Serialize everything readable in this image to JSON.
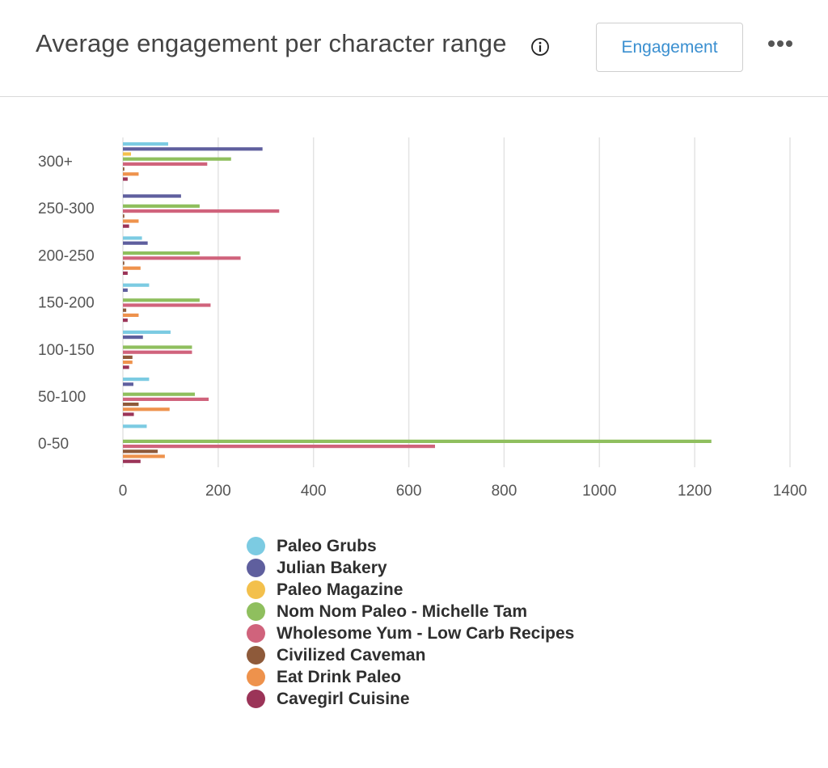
{
  "header": {
    "title": "Average engagement per character range",
    "info_icon": "info-circle-icon",
    "mode_button_label": "Engagement",
    "more_icon": "more-horizontal-icon"
  },
  "chart_data": {
    "type": "bar",
    "orientation": "horizontal",
    "title": "",
    "xlabel": "",
    "ylabel": "",
    "xlim": [
      0,
      1400
    ],
    "x_ticks": [
      0,
      200,
      400,
      600,
      800,
      1000,
      1200,
      1400
    ],
    "grid": "vertical",
    "legend_position": "bottom",
    "categories": [
      "300+",
      "250-300",
      "200-250",
      "150-200",
      "100-150",
      "50-100",
      "0-50"
    ],
    "series": [
      {
        "name": "Paleo Grubs",
        "color": "#7ccbe2",
        "values": [
          95,
          0,
          40,
          55,
          100,
          55,
          50
        ]
      },
      {
        "name": "Julian Bakery",
        "color": "#5f5f9e",
        "values": [
          293,
          122,
          52,
          10,
          42,
          22,
          0
        ]
      },
      {
        "name": "Paleo Magazine",
        "color": "#f3c04c",
        "values": [
          17,
          0,
          0,
          0,
          0,
          0,
          0
        ]
      },
      {
        "name": "Nom Nom Paleo - Michelle Tam",
        "color": "#8fbf5e",
        "values": [
          227,
          161,
          161,
          161,
          145,
          151,
          1235
        ]
      },
      {
        "name": "Wholesome Yum - Low Carb Recipes",
        "color": "#d0637c",
        "values": [
          177,
          328,
          247,
          184,
          145,
          180,
          655
        ]
      },
      {
        "name": "Civilized Caveman",
        "color": "#8e5a3a",
        "values": [
          3,
          3,
          3,
          7,
          20,
          33,
          73
        ]
      },
      {
        "name": "Eat Drink Paleo",
        "color": "#ee924c",
        "values": [
          33,
          33,
          37,
          33,
          20,
          98,
          88
        ]
      },
      {
        "name": "Cavegirl Cuisine",
        "color": "#9b3458",
        "values": [
          10,
          13,
          10,
          10,
          13,
          23,
          37
        ]
      }
    ]
  }
}
